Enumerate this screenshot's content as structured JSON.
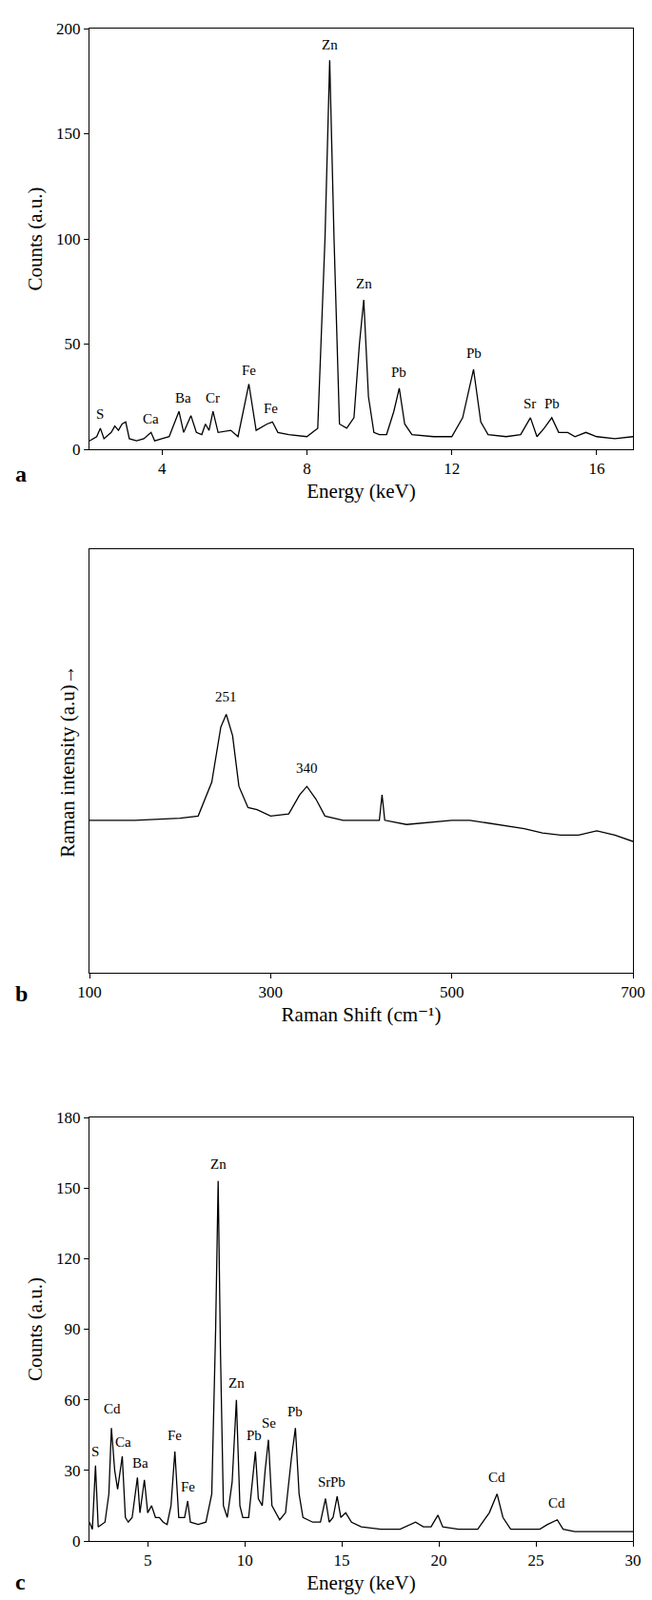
{
  "chart_data": [
    {
      "type": "line",
      "label": "a",
      "x_label": "Energy (keV)",
      "y_label": "Counts (a.u.)",
      "color": "#000000",
      "grid": false,
      "xlim": [
        2,
        17
      ],
      "ylim": [
        0,
        200
      ],
      "xticks": [
        4,
        8,
        12,
        16
      ],
      "yticks": [
        0,
        50,
        100,
        150,
        200
      ],
      "x": [
        2.0,
        2.2,
        2.3,
        2.4,
        2.6,
        2.7,
        2.8,
        2.9,
        3.0,
        3.1,
        3.3,
        3.5,
        3.7,
        3.8,
        4.0,
        4.2,
        4.47,
        4.6,
        4.8,
        4.95,
        5.1,
        5.2,
        5.3,
        5.41,
        5.55,
        5.9,
        6.1,
        6.4,
        6.6,
        6.9,
        7.05,
        7.2,
        7.5,
        8.0,
        8.3,
        8.5,
        8.63,
        8.75,
        8.9,
        9.1,
        9.3,
        9.45,
        9.57,
        9.7,
        9.85,
        10.0,
        10.2,
        10.4,
        10.55,
        10.7,
        10.9,
        11.5,
        12.0,
        12.3,
        12.6,
        12.8,
        13.0,
        13.5,
        13.9,
        14.17,
        14.35,
        14.55,
        14.76,
        14.95,
        15.2,
        15.4,
        15.7,
        16.0,
        16.5,
        17.0
      ],
      "values": [
        4,
        6,
        10,
        5,
        8,
        11,
        9,
        12,
        13,
        5,
        4,
        5,
        8,
        4,
        5,
        6,
        18,
        8,
        16,
        8,
        7,
        12,
        9,
        18,
        8,
        9,
        6,
        31,
        9,
        12,
        13,
        8,
        7,
        6,
        10,
        100,
        185,
        100,
        12,
        10,
        15,
        50,
        71,
        25,
        8,
        7,
        7,
        18,
        29,
        12,
        7,
        6,
        6,
        15,
        38,
        13,
        7,
        6,
        7,
        15,
        6,
        10,
        15,
        8,
        8,
        6,
        8,
        6,
        5,
        6
      ],
      "annotations": [
        {
          "text": "S",
          "x": 2.3,
          "y": 12
        },
        {
          "text": "Ca",
          "x": 3.7,
          "y": 10
        },
        {
          "text": "Ba",
          "x": 4.6,
          "y": 20
        },
        {
          "text": "Cr",
          "x": 5.4,
          "y": 20
        },
        {
          "text": "Fe",
          "x": 6.4,
          "y": 33
        },
        {
          "text": "Fe",
          "x": 7.0,
          "y": 15
        },
        {
          "text": "Zn",
          "x": 8.63,
          "y": 188
        },
        {
          "text": "Zn",
          "x": 9.57,
          "y": 74
        },
        {
          "text": "Pb",
          "x": 10.55,
          "y": 32
        },
        {
          "text": "Pb",
          "x": 12.6,
          "y": 41
        },
        {
          "text": "Sr",
          "x": 14.15,
          "y": 17
        },
        {
          "text": "Pb",
          "x": 14.76,
          "y": 17
        }
      ]
    },
    {
      "type": "line",
      "label": "b",
      "x_label": "Raman Shift (cm⁻¹)",
      "y_label": "Raman intensity (a.u)→",
      "color": "#000000",
      "grid": false,
      "tick_labels": "x",
      "xlim": [
        100,
        700
      ],
      "ylim": [
        0,
        100
      ],
      "xticks": [
        100,
        300,
        500,
        700
      ],
      "x": [
        100,
        150,
        200,
        220,
        235,
        245,
        251,
        258,
        265,
        275,
        285,
        300,
        320,
        332,
        340,
        350,
        360,
        380,
        400,
        415,
        420,
        423,
        426,
        450,
        500,
        520,
        550,
        580,
        600,
        620,
        640,
        660,
        680,
        700
      ],
      "values": [
        36,
        36,
        36.5,
        37,
        45,
        58,
        61,
        56,
        44,
        39,
        38.5,
        37,
        37.5,
        42,
        44,
        41,
        37,
        36,
        36,
        36,
        36,
        42,
        36,
        35,
        36,
        36,
        35,
        34,
        33,
        32.5,
        32.5,
        33.5,
        32.5,
        31
      ],
      "annotations": [
        {
          "text": "251",
          "x": 251,
          "y": 63
        },
        {
          "text": "340",
          "x": 340,
          "y": 46
        }
      ]
    },
    {
      "type": "line",
      "label": "c",
      "x_label": "Energy (keV)",
      "y_label": "Counts (a.u.)",
      "color": "#000000",
      "grid": false,
      "xlim": [
        2,
        30
      ],
      "ylim": [
        0,
        180
      ],
      "xticks": [
        5,
        10,
        15,
        20,
        25,
        30
      ],
      "yticks": [
        0,
        30,
        60,
        90,
        120,
        150,
        180
      ],
      "x": [
        2.0,
        2.15,
        2.31,
        2.45,
        2.8,
        3.0,
        3.13,
        3.3,
        3.45,
        3.69,
        3.85,
        4.0,
        4.2,
        4.47,
        4.6,
        4.83,
        5.0,
        5.2,
        5.4,
        5.6,
        5.8,
        6.0,
        6.2,
        6.4,
        6.6,
        6.9,
        7.06,
        7.2,
        7.6,
        8.0,
        8.3,
        8.5,
        8.63,
        8.75,
        8.9,
        9.1,
        9.35,
        9.57,
        9.75,
        9.9,
        10.2,
        10.4,
        10.55,
        10.7,
        10.9,
        11.05,
        11.22,
        11.4,
        11.8,
        12.1,
        12.4,
        12.61,
        12.8,
        13.0,
        13.5,
        13.9,
        14.16,
        14.35,
        14.55,
        14.76,
        14.95,
        15.2,
        15.5,
        16.0,
        17.0,
        18.0,
        18.5,
        18.8,
        19.2,
        19.6,
        19.95,
        20.2,
        21.0,
        22.0,
        22.6,
        23.0,
        23.3,
        23.7,
        24.5,
        25.2,
        25.6,
        26.1,
        26.4,
        27.0,
        28.0,
        29.0,
        30.0
      ],
      "values": [
        8,
        5,
        32,
        6,
        8,
        20,
        48,
        30,
        22,
        36,
        10,
        8,
        10,
        27,
        12,
        26,
        12,
        15,
        10,
        10,
        8,
        7,
        15,
        38,
        10,
        10,
        17,
        8,
        7,
        8,
        20,
        90,
        153,
        80,
        15,
        10,
        25,
        60,
        15,
        10,
        10,
        25,
        38,
        18,
        15,
        30,
        43,
        15,
        9,
        12,
        35,
        48,
        20,
        10,
        8,
        8,
        18,
        8,
        10,
        19,
        10,
        12,
        8,
        6,
        5,
        5,
        7,
        8,
        6,
        6,
        11,
        6,
        5,
        5,
        12,
        20,
        10,
        5,
        5,
        5,
        7,
        9,
        5,
        4,
        4,
        4,
        4
      ],
      "annotations": [
        {
          "text": "S",
          "x": 2.3,
          "y": 34
        },
        {
          "text": "Cd",
          "x": 3.2,
          "y": 52
        },
        {
          "text": "Ca",
          "x": 3.75,
          "y": 38
        },
        {
          "text": "Ba",
          "x": 4.6,
          "y": 29
        },
        {
          "text": "Fe",
          "x": 6.4,
          "y": 41
        },
        {
          "text": "Fe",
          "x": 7.06,
          "y": 19
        },
        {
          "text": "Zn",
          "x": 8.63,
          "y": 156
        },
        {
          "text": "Zn",
          "x": 9.57,
          "y": 63
        },
        {
          "text": "Pb",
          "x": 10.5,
          "y": 41
        },
        {
          "text": "Se",
          "x": 11.22,
          "y": 46
        },
        {
          "text": "Pb",
          "x": 12.61,
          "y": 51
        },
        {
          "text": "Sr",
          "x": 14.1,
          "y": 21
        },
        {
          "text": "Pb",
          "x": 14.8,
          "y": 21
        },
        {
          "text": "Cd",
          "x": 23.0,
          "y": 23
        },
        {
          "text": "Cd",
          "x": 26.1,
          "y": 12
        }
      ]
    }
  ]
}
